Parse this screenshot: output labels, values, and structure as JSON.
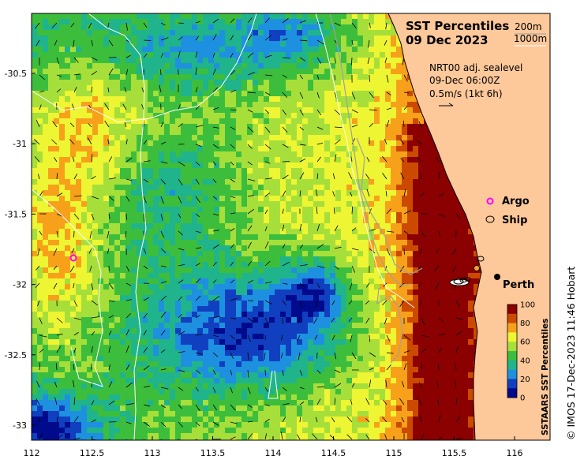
{
  "title": {
    "line1": "SST Percentiles",
    "line2": "09 Dec 2023",
    "depth1": "200m",
    "depth2": "1000m"
  },
  "currents": {
    "line1": "NRT00 adj. sealevel",
    "line2": "09-Dec 06:00Z",
    "line3": "0.5m/s (1kt 6h)"
  },
  "legend": {
    "argo": "Argo",
    "ship": "Ship"
  },
  "place_label": "Perth",
  "colorbar": {
    "title": "SSTAARS SST Percentiles",
    "ticks": [
      "100",
      "80",
      "60",
      "40",
      "20",
      "0"
    ],
    "colors": [
      "#8b0000",
      "#cc4a00",
      "#f7a11a",
      "#eef532",
      "#a6df3a",
      "#3cbe3c",
      "#1fb48c",
      "#1e90e0",
      "#1040c0",
      "#000a8c"
    ]
  },
  "credit": "© IMOS 17-Dec-2023 11:46 Hobart",
  "axes": {
    "x_ticks": [
      "112",
      "112.5",
      "113",
      "113.5",
      "114",
      "114.5",
      "115",
      "115.5",
      "116"
    ],
    "y_ticks": [
      "-30.5",
      "-31",
      "-31.5",
      "-32",
      "-32.5",
      "-33"
    ],
    "lon_range": [
      112,
      116.3
    ],
    "lat_range": [
      -33.1,
      -30.05
    ]
  },
  "colors": {
    "land": "#fdc89a",
    "isobath_200": "#a0a0a0",
    "isobath_1000": "#ffffff",
    "argo": "#ff00ff"
  }
}
